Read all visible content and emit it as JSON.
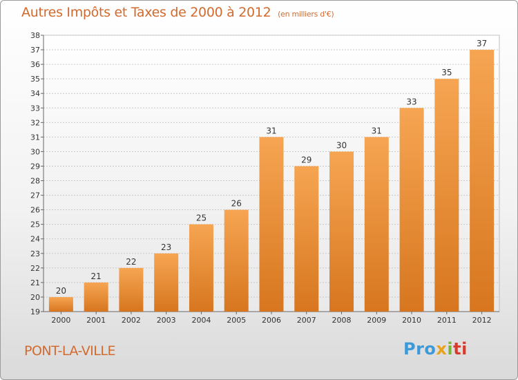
{
  "header": {
    "title": "Autres Impôts et Taxes de 2000 à 2012",
    "unit": "(en milliers d'€)"
  },
  "footer": {
    "commune": "PONT-LA-VILLE",
    "logo_parts": [
      "Pro",
      "x",
      "i",
      "ti"
    ]
  },
  "colors": {
    "bar_top": "#f6a552",
    "bar_bottom": "#d7761f",
    "title": "#d26a2e",
    "grid": "#c8c8c8"
  },
  "chart_data": {
    "type": "bar",
    "title": "Autres Impôts et Taxes de 2000 à 2012",
    "subtitle": "(en milliers d'€)",
    "categories": [
      "2000",
      "2001",
      "2002",
      "2003",
      "2004",
      "2005",
      "2006",
      "2007",
      "2008",
      "2009",
      "2010",
      "2011",
      "2012"
    ],
    "values": [
      20,
      21,
      22,
      23,
      25,
      26,
      31,
      29,
      30,
      31,
      33,
      35,
      37
    ],
    "ylim": [
      19,
      38
    ],
    "yticks": [
      19,
      20,
      21,
      22,
      23,
      24,
      25,
      26,
      27,
      28,
      29,
      30,
      31,
      32,
      33,
      34,
      35,
      36,
      37,
      38
    ],
    "grid": true,
    "data_labels": true
  }
}
